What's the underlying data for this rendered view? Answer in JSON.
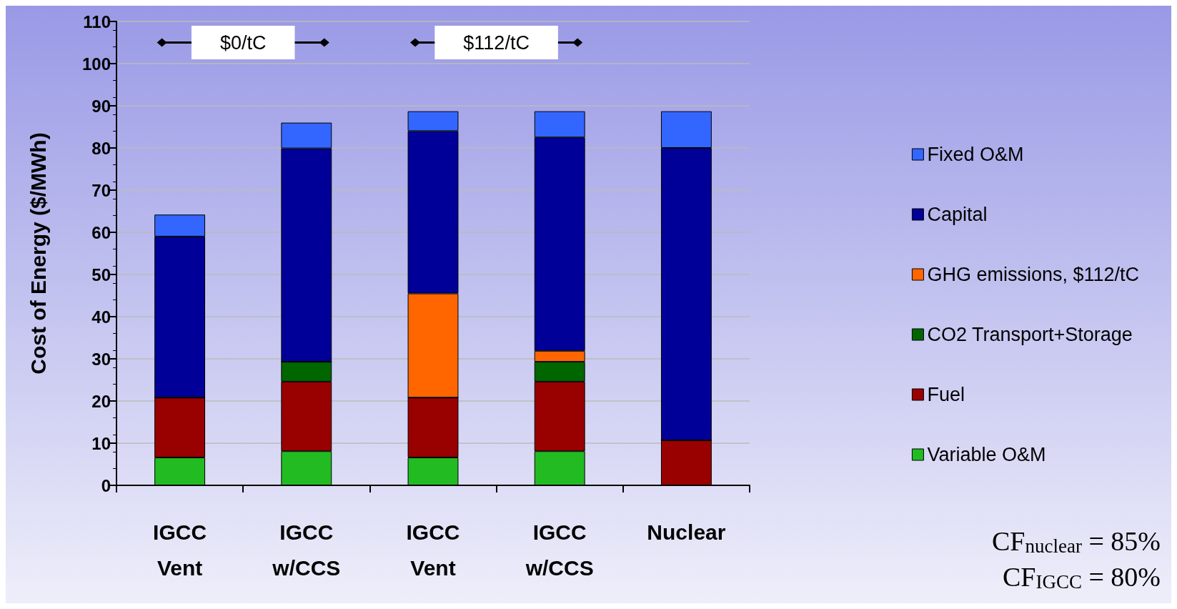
{
  "chart_data": {
    "type": "bar",
    "stacked": true,
    "ylabel": "Cost of Energy ($/MWh)",
    "categories": [
      "IGCC\nVent",
      "IGCC\nw/CCS",
      "IGCC\nVent",
      "IGCC\nw/CCS",
      "Nuclear"
    ],
    "series": [
      {
        "name": "Variable O&M",
        "color": "#22bb22",
        "values": [
          6.6,
          8.1,
          6.6,
          8.1,
          0
        ]
      },
      {
        "name": "Fuel",
        "color": "#990000",
        "values": [
          14.2,
          16.5,
          14.2,
          16.5,
          10.7
        ]
      },
      {
        "name": "CO2 Transport+Storage",
        "color": "#006600",
        "values": [
          0,
          4.7,
          0,
          4.7,
          0
        ]
      },
      {
        "name": "GHG emissions, $112/tC",
        "color": "#ff6600",
        "values": [
          0,
          0,
          24.7,
          2.6,
          0
        ]
      },
      {
        "name": "Capital",
        "color": "#000099",
        "values": [
          38.2,
          50.6,
          38.5,
          50.6,
          69.3
        ]
      },
      {
        "name": "Fixed O&M",
        "color": "#3366ff",
        "values": [
          5.2,
          6.1,
          4.7,
          6.2,
          8.7
        ]
      }
    ],
    "ylim": [
      0,
      110
    ],
    "yticks": [
      0,
      10,
      20,
      30,
      40,
      50,
      60,
      70,
      80,
      90,
      100,
      110
    ],
    "grid": "y",
    "legend": "right",
    "annotations": [
      "$0/tC",
      "$112/tC",
      "CF$_{nuclear}$ = 85%",
      "CF$_{IGCC}$ = 80%"
    ]
  }
}
